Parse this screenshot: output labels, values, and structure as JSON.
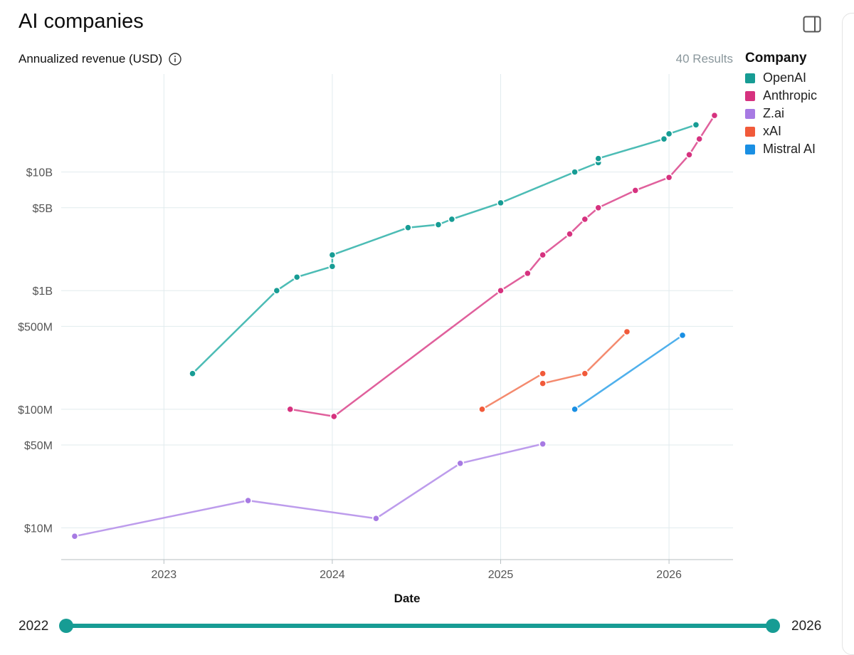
{
  "page": {
    "title": "AI companies",
    "metric_label": "Annualized revenue (USD)",
    "results": "40 Results"
  },
  "legend": {
    "title": "Company"
  },
  "slider": {
    "start_label": "2022",
    "end_label": "2026",
    "start_value": 2022,
    "end_value": 2026
  },
  "chart_data": {
    "type": "line",
    "title": "AI companies",
    "xlabel": "Date",
    "ylabel": "Annualized revenue (USD)",
    "yscale": "log",
    "xlim": [
      2022.39,
      2026.38
    ],
    "ylim": [
      5400000,
      67000000000
    ],
    "x_ticks": [
      {
        "value": 2023,
        "label": "2023"
      },
      {
        "value": 2024,
        "label": "2024"
      },
      {
        "value": 2025,
        "label": "2025"
      },
      {
        "value": 2026,
        "label": "2026"
      }
    ],
    "y_ticks": [
      {
        "value": 10000000,
        "label": "$10M"
      },
      {
        "value": 50000000,
        "label": "$50M"
      },
      {
        "value": 100000000,
        "label": "$100M"
      },
      {
        "value": 500000000,
        "label": "$500M"
      },
      {
        "value": 1000000000,
        "label": "$1B"
      },
      {
        "value": 5000000000,
        "label": "$5B"
      },
      {
        "value": 10000000000,
        "label": "$10B"
      }
    ],
    "grid": true,
    "legend_position": "right",
    "series": [
      {
        "name": "OpenAI",
        "color": "#179c94",
        "line_color": "#4cbcb5",
        "points": [
          [
            2023.17,
            200000000
          ],
          [
            2023.67,
            1000000000
          ],
          [
            2023.79,
            1300000000
          ],
          [
            2024.0,
            1600000000
          ],
          [
            2024.0,
            2000000000
          ],
          [
            2024.45,
            3400000000
          ],
          [
            2024.63,
            3600000000
          ],
          [
            2024.71,
            4000000000
          ],
          [
            2025.0,
            5500000000
          ],
          [
            2025.44,
            10000000000
          ],
          [
            2025.58,
            12000000000
          ],
          [
            2025.58,
            13000000000
          ],
          [
            2025.97,
            19000000000
          ],
          [
            2026.0,
            21000000000
          ],
          [
            2026.16,
            25000000000
          ]
        ]
      },
      {
        "name": "Anthropic",
        "color": "#d6327f",
        "line_color": "#e0609c",
        "points": [
          [
            2023.75,
            100000000
          ],
          [
            2024.01,
            87000000
          ],
          [
            2025.0,
            1000000000
          ],
          [
            2025.16,
            1400000000
          ],
          [
            2025.25,
            2000000000
          ],
          [
            2025.41,
            3000000000
          ],
          [
            2025.5,
            4000000000
          ],
          [
            2025.58,
            5000000000
          ],
          [
            2025.8,
            7000000000
          ],
          [
            2026.0,
            9000000000
          ],
          [
            2026.12,
            14000000000
          ],
          [
            2026.18,
            19000000000
          ],
          [
            2026.27,
            30000000000
          ]
        ]
      },
      {
        "name": "Z.ai",
        "color": "#a77ae3",
        "line_color": "#bd9cec",
        "points": [
          [
            2022.47,
            8500000
          ],
          [
            2023.5,
            17000000
          ],
          [
            2024.26,
            12000000
          ],
          [
            2024.76,
            35000000
          ],
          [
            2025.25,
            51000000
          ]
        ]
      },
      {
        "name": "xAI",
        "color": "#f15a3a",
        "line_color": "#f48a6e",
        "points": [
          [
            2024.89,
            100000000
          ],
          [
            2025.25,
            165000000
          ],
          [
            2025.25,
            200000000
          ],
          [
            2025.5,
            200000000
          ],
          [
            2025.75,
            450000000
          ]
        ],
        "segments": [
          [
            0,
            2
          ],
          [
            1,
            3
          ],
          [
            3,
            4
          ]
        ]
      },
      {
        "name": "Mistral AI",
        "color": "#1a8fe3",
        "line_color": "#4fb0ec",
        "points": [
          [
            2025.44,
            100000000
          ],
          [
            2026.08,
            420000000
          ]
        ]
      }
    ]
  }
}
